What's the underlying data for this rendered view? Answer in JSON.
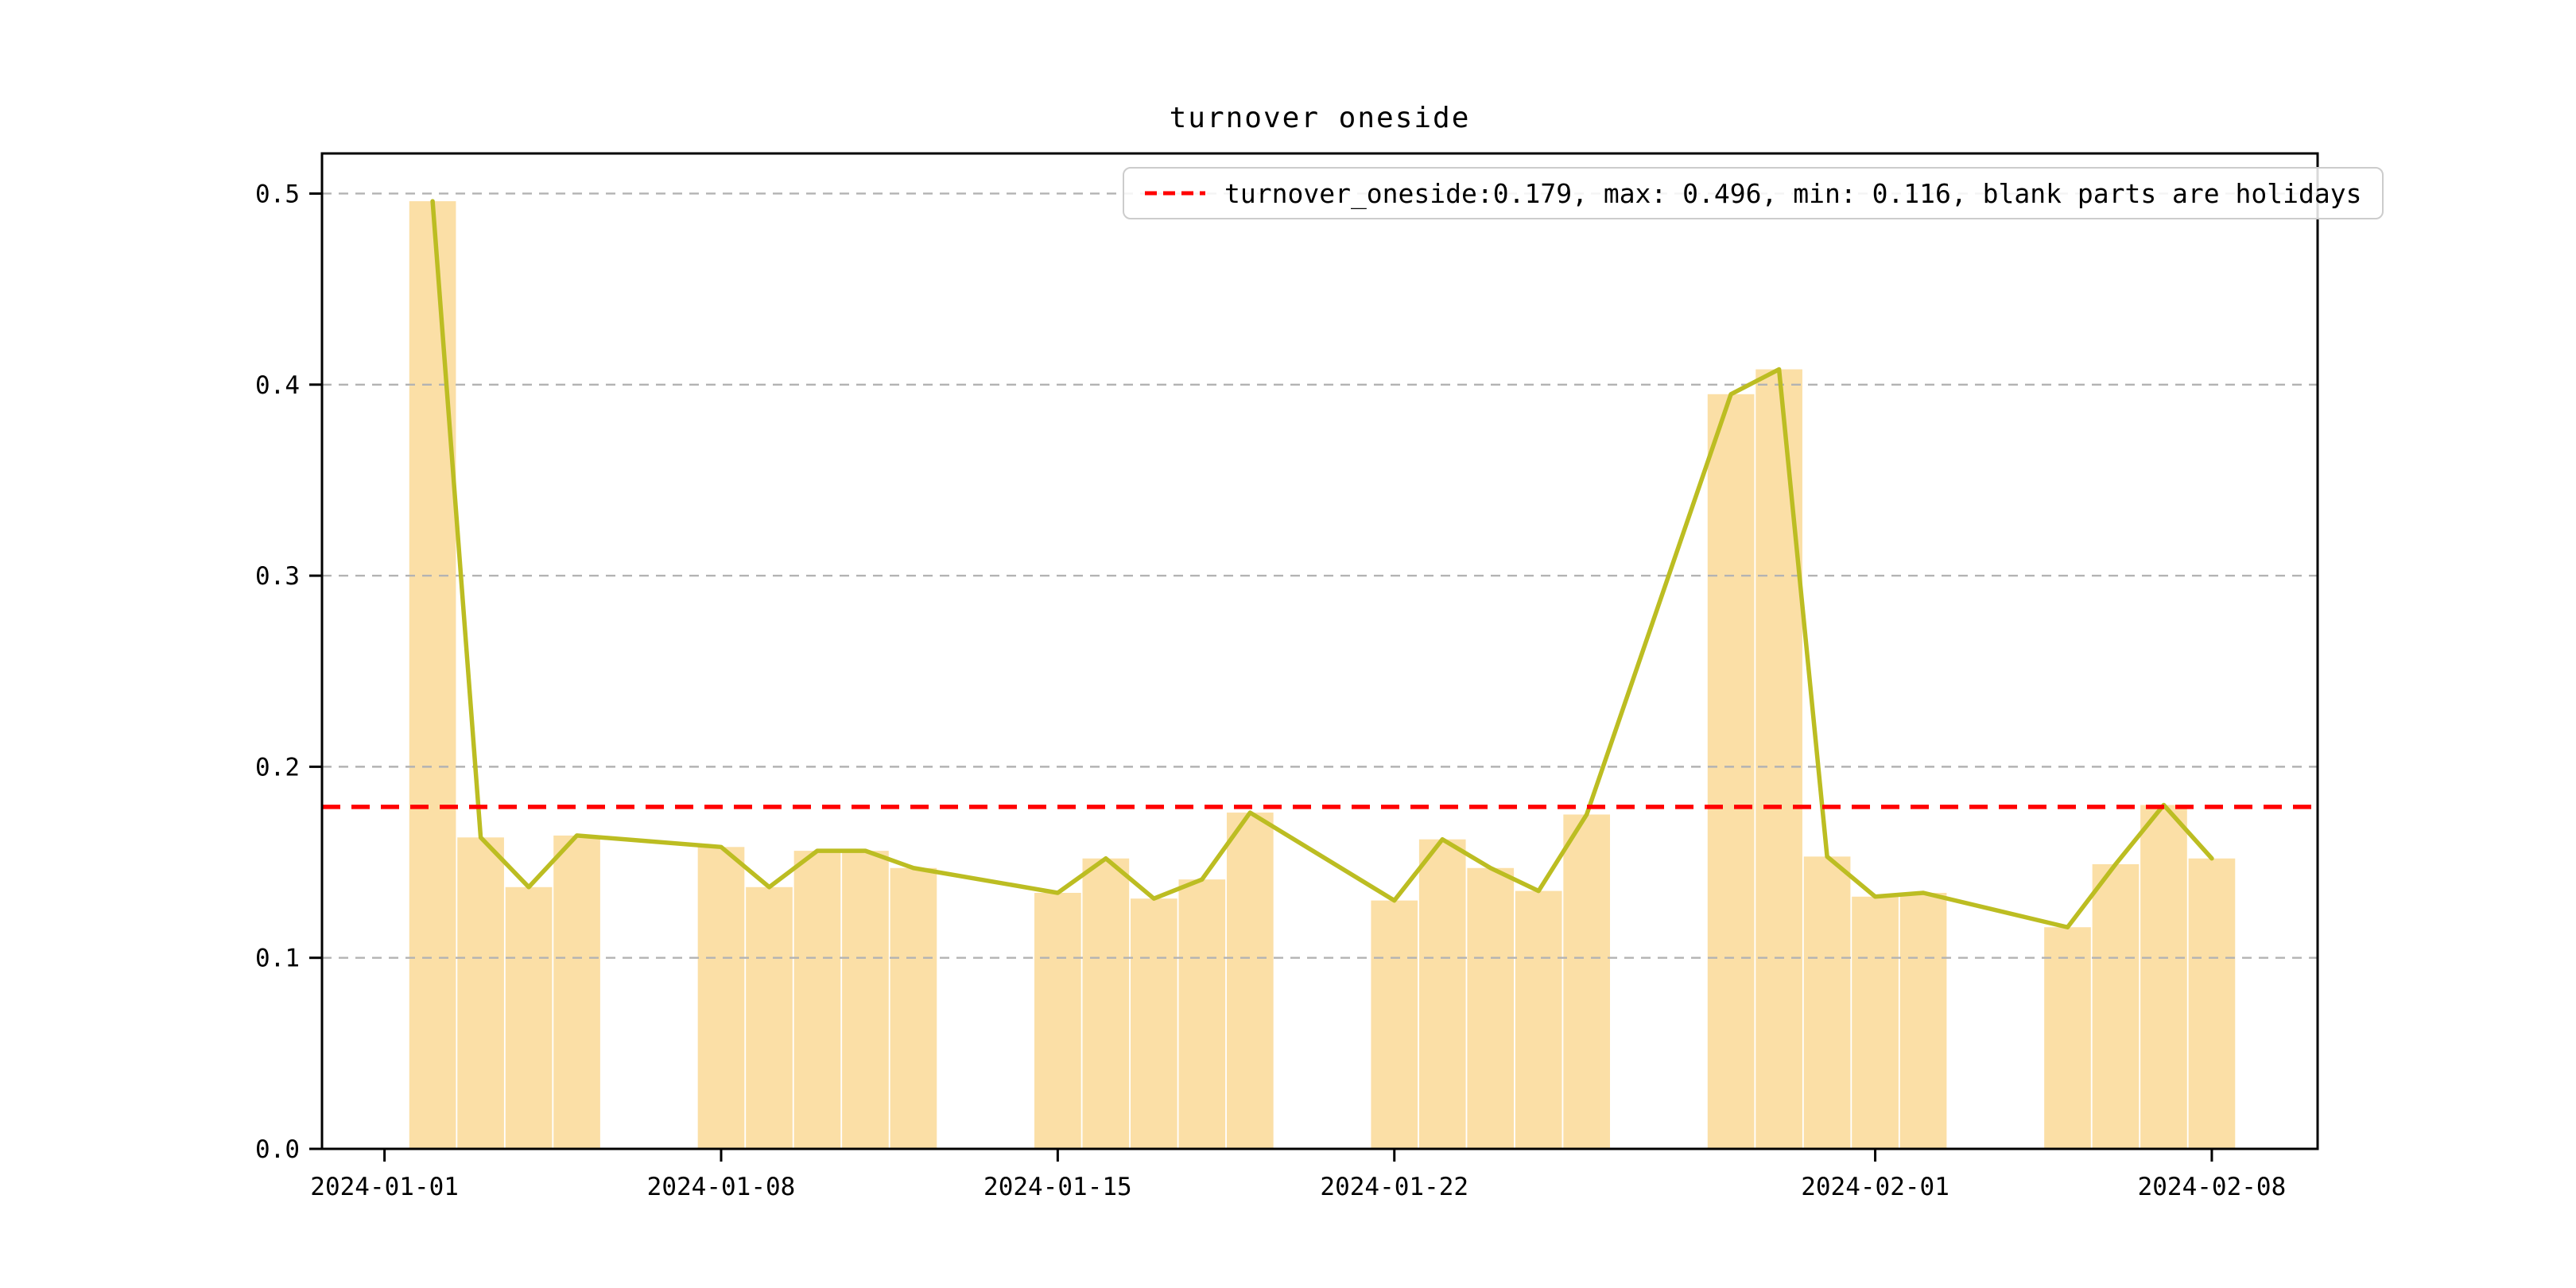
{
  "chart_data": {
    "type": "bar",
    "title": "turnover oneside",
    "legend_label": "turnover_oneside:0.179, max: 0.496, min: 0.116, blank parts are holidays",
    "series_name": "turnover_oneside",
    "mean": 0.179,
    "max": 0.496,
    "min": 0.116,
    "mean_line_value": 0.179,
    "note": "bars and overlaid line share the same daily values; blank gaps are holidays",
    "x_origin": "2024-01-01",
    "dates": [
      "2024-01-02",
      "2024-01-03",
      "2024-01-04",
      "2024-01-05",
      "2024-01-08",
      "2024-01-09",
      "2024-01-10",
      "2024-01-11",
      "2024-01-12",
      "2024-01-15",
      "2024-01-16",
      "2024-01-17",
      "2024-01-18",
      "2024-01-19",
      "2024-01-22",
      "2024-01-23",
      "2024-01-24",
      "2024-01-25",
      "2024-01-26",
      "2024-01-29",
      "2024-01-30",
      "2024-01-31",
      "2024-02-01",
      "2024-02-02",
      "2024-02-05",
      "2024-02-06",
      "2024-02-07",
      "2024-02-08"
    ],
    "values": [
      0.496,
      0.163,
      0.137,
      0.164,
      0.158,
      0.137,
      0.156,
      0.156,
      0.147,
      0.134,
      0.152,
      0.131,
      0.141,
      0.176,
      0.13,
      0.162,
      0.147,
      0.135,
      0.175,
      0.395,
      0.408,
      0.153,
      0.132,
      0.134,
      0.116,
      0.149,
      0.18,
      0.152
    ],
    "x_ticks": [
      "2024-01-01",
      "2024-01-08",
      "2024-01-15",
      "2024-01-22",
      "2024-02-01",
      "2024-02-08"
    ],
    "y_ticks": [
      {
        "value": 0.0,
        "label": "0.0"
      },
      {
        "value": 0.1,
        "label": "0.1"
      },
      {
        "value": 0.2,
        "label": "0.2"
      },
      {
        "value": 0.3,
        "label": "0.3"
      },
      {
        "value": 0.4,
        "label": "0.4"
      },
      {
        "value": 0.5,
        "label": "0.5"
      }
    ],
    "xlim_days": [
      -1.3,
      40.2
    ],
    "ylim": [
      0,
      0.521
    ],
    "bar_width_days": 0.97,
    "grid": true,
    "legend_position": "upper right",
    "colors": {
      "bar": "#FBDFA6",
      "line": "#BCBD22",
      "mean_line": "#FF0000",
      "grid": "#B3B3B3",
      "spine": "#000000",
      "background": "#FFFFFF",
      "legend_border": "#CCCCCC"
    }
  }
}
